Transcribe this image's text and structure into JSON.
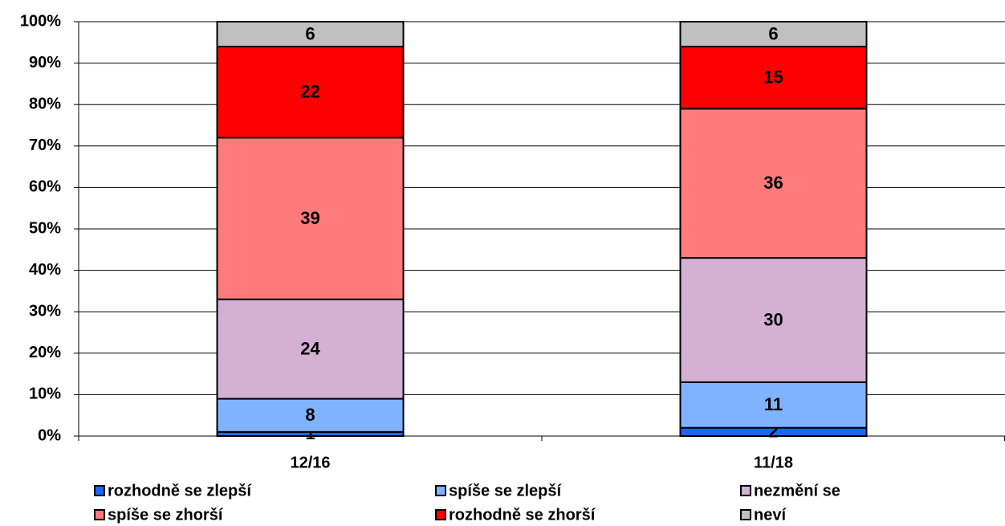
{
  "chart_data": {
    "type": "stacked_bar",
    "categories": [
      "12/16",
      "11/18"
    ],
    "series": [
      {
        "name": "rozhodně se zlepší",
        "color": "#1a66ff",
        "values": [
          1,
          2
        ]
      },
      {
        "name": "spíše se zlepší",
        "color": "#80b3ff",
        "values": [
          8,
          11
        ]
      },
      {
        "name": "nezmění se",
        "color": "#d4b0d4",
        "values": [
          24,
          30
        ]
      },
      {
        "name": "spíše se zhorší",
        "color": "#ff7a7a",
        "values": [
          39,
          36
        ]
      },
      {
        "name": "rozhodně se zhorší",
        "color": "#ff0000",
        "values": [
          22,
          15
        ]
      },
      {
        "name": "neví",
        "color": "#c0c0c0",
        "values": [
          6,
          6
        ]
      }
    ],
    "ylim": [
      0,
      100
    ],
    "yticks": [
      {
        "value": 0,
        "label": "0%"
      },
      {
        "value": 10,
        "label": "10%"
      },
      {
        "value": 20,
        "label": "20%"
      },
      {
        "value": 30,
        "label": "30%"
      },
      {
        "value": 40,
        "label": "40%"
      },
      {
        "value": 50,
        "label": "50%"
      },
      {
        "value": 60,
        "label": "60%"
      },
      {
        "value": 70,
        "label": "70%"
      },
      {
        "value": 80,
        "label": "80%"
      },
      {
        "value": 90,
        "label": "90%"
      },
      {
        "value": 100,
        "label": "100%"
      }
    ],
    "grid": true
  }
}
